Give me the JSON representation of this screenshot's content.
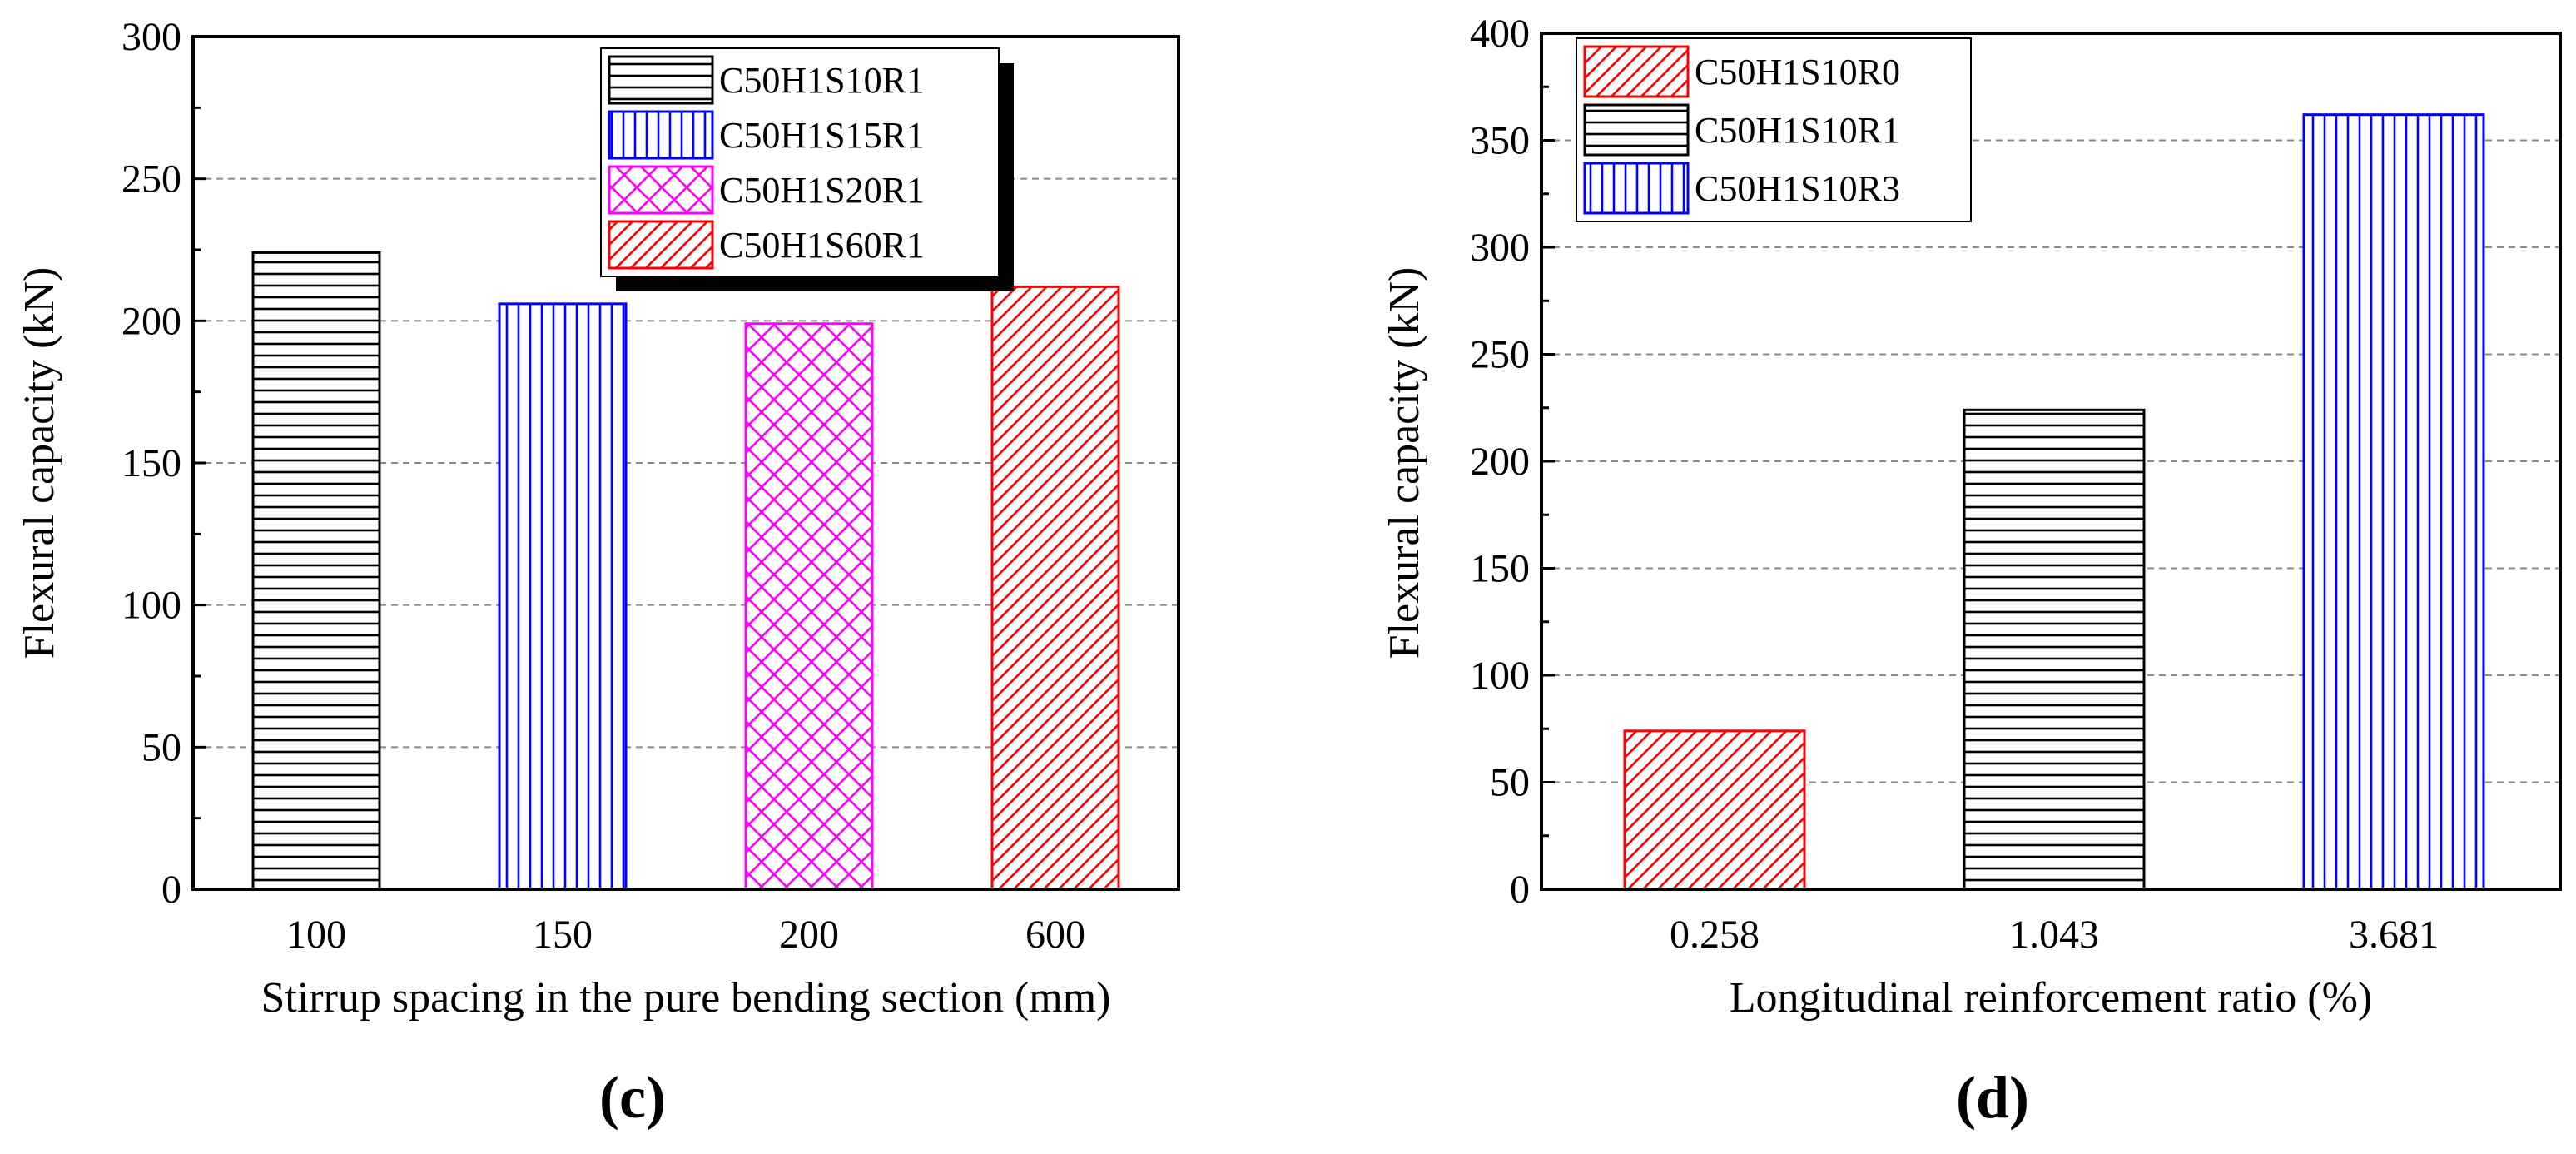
{
  "chart_data": [
    {
      "type": "bar",
      "panel_label": "(c)",
      "categories": [
        "100",
        "150",
        "200",
        "600"
      ],
      "values": [
        224,
        206,
        199,
        212
      ],
      "series_names": [
        "C50H1S10R1",
        "C50H1S15R1",
        "C50H1S20R1",
        "C50H1S60R1"
      ],
      "colors": [
        "#000000",
        "#0000ff",
        "#ff00ff",
        "#ff0000"
      ],
      "patterns": [
        "horizontal",
        "vertical",
        "crosshatch",
        "diagonal"
      ],
      "xlabel": "Stirrup spacing in the pure bending section (mm)",
      "ylabel": "Flexural capacity (kN)",
      "ylim": [
        0,
        300
      ],
      "yticks": [
        "0",
        "50",
        "100",
        "150",
        "200",
        "250",
        "300"
      ],
      "grid": "horizontal dashed",
      "legend_position": "top-right"
    },
    {
      "type": "bar",
      "panel_label": "(d)",
      "categories": [
        "0.258",
        "1.043",
        "3.681"
      ],
      "values": [
        74,
        224,
        362
      ],
      "series_names": [
        "C50H1S10R0",
        "C50H1S10R1",
        "C50H1S10R3"
      ],
      "colors": [
        "#ff0000",
        "#000000",
        "#0000ff"
      ],
      "patterns": [
        "diagonal",
        "horizontal",
        "vertical"
      ],
      "xlabel": "Longitudinal reinforcement ratio (%)",
      "ylabel": "Flexural capacity (kN)",
      "ylim": [
        0,
        400
      ],
      "yticks": [
        "0",
        "50",
        "100",
        "150",
        "200",
        "250",
        "300",
        "350",
        "400"
      ],
      "grid": "horizontal dashed",
      "legend_position": "top-left"
    }
  ]
}
